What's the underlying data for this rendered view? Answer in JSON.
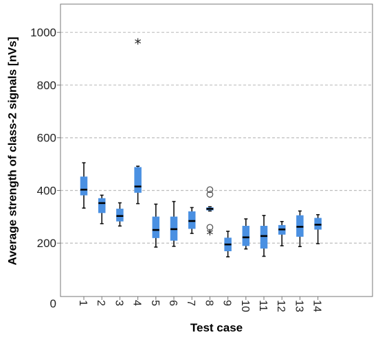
{
  "chart_data": {
    "type": "box",
    "xlabel": "Test case",
    "ylabel": "Average strength of class-2 signals [nVs]",
    "ylim": [
      0,
      1100
    ],
    "yticks": [
      0,
      200,
      400,
      600,
      800,
      1000
    ],
    "grid": "horizontal-dashed",
    "box_color": "#4a90e2",
    "boxes": [
      {
        "category": "1",
        "min": 333,
        "q1": 382,
        "median": 403,
        "q3": 452,
        "max": 505,
        "outliers": []
      },
      {
        "category": "2",
        "min": 274,
        "q1": 315,
        "median": 352,
        "q3": 370,
        "max": 382,
        "outliers": []
      },
      {
        "category": "3",
        "min": 265,
        "q1": 283,
        "median": 303,
        "q3": 330,
        "max": 353,
        "outliers": []
      },
      {
        "category": "4",
        "min": 350,
        "q1": 392,
        "median": 415,
        "q3": 488,
        "max": 492,
        "outliers": [
          {
            "value": 962,
            "symbol": "*"
          }
        ]
      },
      {
        "category": "5",
        "min": 185,
        "q1": 220,
        "median": 250,
        "q3": 300,
        "max": 348,
        "outliers": []
      },
      {
        "category": "6",
        "min": 188,
        "q1": 210,
        "median": 253,
        "q3": 300,
        "max": 358,
        "outliers": []
      },
      {
        "category": "7",
        "min": 237,
        "q1": 255,
        "median": 284,
        "q3": 320,
        "max": 335,
        "outliers": []
      },
      {
        "category": "8",
        "min": 322,
        "q1": 325,
        "median": 330,
        "q3": 335,
        "max": 338,
        "outliers": [
          {
            "value": 403,
            "symbol": "o"
          },
          {
            "value": 385,
            "symbol": "o"
          },
          {
            "value": 260,
            "symbol": "o"
          },
          {
            "value": 237,
            "symbol": "*"
          }
        ]
      },
      {
        "category": "9",
        "min": 148,
        "q1": 170,
        "median": 195,
        "q3": 220,
        "max": 245,
        "outliers": []
      },
      {
        "category": "10",
        "min": 178,
        "q1": 190,
        "median": 222,
        "q3": 265,
        "max": 292,
        "outliers": []
      },
      {
        "category": "11",
        "min": 150,
        "q1": 180,
        "median": 227,
        "q3": 265,
        "max": 305,
        "outliers": []
      },
      {
        "category": "12",
        "min": 190,
        "q1": 233,
        "median": 252,
        "q3": 268,
        "max": 282,
        "outliers": []
      },
      {
        "category": "13",
        "min": 187,
        "q1": 225,
        "median": 262,
        "q3": 305,
        "max": 322,
        "outliers": []
      },
      {
        "category": "14",
        "min": 198,
        "q1": 252,
        "median": 270,
        "q3": 295,
        "max": 308,
        "outliers": []
      }
    ]
  }
}
